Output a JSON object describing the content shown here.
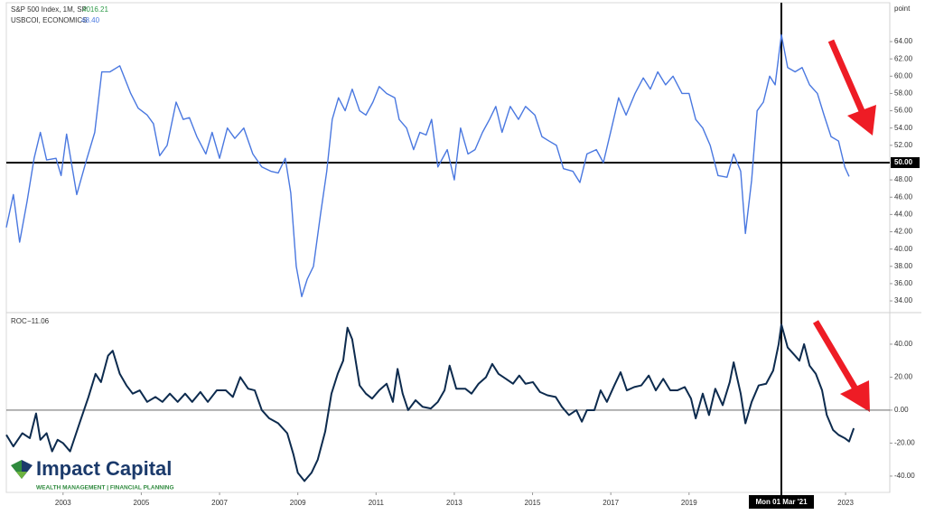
{
  "header": {
    "symbol": "S&P 500 Index, 1M, SP",
    "value": 4016.21
  },
  "logo": {
    "name": "Impact Capital",
    "tagline": "WEALTH MANAGEMENT | FINANCIAL PLANNING"
  },
  "chart_data": [
    {
      "type": "line",
      "axis_unit": "point",
      "x": [
        2001.55,
        2001.73,
        2001.89,
        2002.08,
        2002.26,
        2002.42,
        2002.58,
        2002.82,
        2002.95,
        2003.09,
        2003.35,
        2003.58,
        2003.81,
        2003.99,
        2004.2,
        2004.45,
        2004.73,
        2004.92,
        2005.15,
        2005.31,
        2005.47,
        2005.66,
        2005.89,
        2006.07,
        2006.23,
        2006.42,
        2006.65,
        2006.81,
        2007.0,
        2007.2,
        2007.39,
        2007.62,
        2007.85,
        2008.08,
        2008.31,
        2008.5,
        2008.68,
        2008.82,
        2008.96,
        2009.1,
        2009.24,
        2009.4,
        2009.58,
        2009.74,
        2009.88,
        2010.04,
        2010.21,
        2010.39,
        2010.58,
        2010.74,
        2010.92,
        2011.08,
        2011.27,
        2011.48,
        2011.59,
        2011.78,
        2011.96,
        2012.12,
        2012.28,
        2012.42,
        2012.58,
        2012.82,
        2013.0,
        2013.16,
        2013.35,
        2013.53,
        2013.72,
        2013.9,
        2014.06,
        2014.22,
        2014.43,
        2014.64,
        2014.82,
        2015.06,
        2015.24,
        2015.42,
        2015.61,
        2015.79,
        2016.03,
        2016.21,
        2016.39,
        2016.63,
        2016.81,
        2017.02,
        2017.2,
        2017.39,
        2017.62,
        2017.83,
        2018.01,
        2018.2,
        2018.4,
        2018.59,
        2018.82,
        2019.0,
        2019.17,
        2019.35,
        2019.54,
        2019.74,
        2019.97,
        2020.14,
        2020.32,
        2020.44,
        2020.6,
        2020.74,
        2020.9,
        2021.06,
        2021.2,
        2021.36,
        2021.52,
        2021.71,
        2021.89,
        2022.08,
        2022.28,
        2022.45,
        2022.63,
        2022.82,
        2022.98,
        2023.09
      ],
      "series": [
        {
          "name": "USBCOI, ECONOMICS",
          "color": "#4a78e0",
          "last_label": "48.40",
          "values": [
            42.5,
            46.3,
            40.8,
            45.5,
            50.5,
            53.5,
            50.3,
            50.5,
            48.5,
            53.3,
            46.3,
            50,
            53.5,
            60.5,
            60.5,
            61.2,
            58,
            56.3,
            55.5,
            54.5,
            50.8,
            52,
            57,
            55,
            55.2,
            53,
            51,
            53.5,
            50.5,
            54,
            52.8,
            54,
            51,
            49.5,
            49,
            48.8,
            50.5,
            46.5,
            38,
            34.5,
            36.5,
            38,
            44,
            49,
            55,
            57.5,
            56,
            58.5,
            56,
            55.5,
            57,
            58.8,
            58,
            57.5,
            55,
            54,
            51.5,
            53.5,
            53.2,
            55,
            49.5,
            51.5,
            48,
            54,
            51,
            51.5,
            53.5,
            55,
            56.5,
            53.5,
            56.5,
            55,
            56.5,
            55.5,
            53,
            52.5,
            52,
            49.3,
            49,
            47.7,
            51,
            51.5,
            50,
            54,
            57.5,
            55.5,
            58,
            59.8,
            58.5,
            60.5,
            59,
            60,
            58,
            58,
            55,
            54,
            52,
            48.5,
            48.3,
            51,
            49,
            41.8,
            48,
            56,
            57,
            60,
            59,
            64.8,
            61,
            60.5,
            61,
            59,
            58,
            55.5,
            53,
            52.5,
            49.5,
            48.4
          ]
        }
      ],
      "hline": {
        "value": 50,
        "label": "50.00"
      },
      "xlim": [
        2001.55,
        2024.13
      ],
      "ylim": [
        32.75,
        68.5
      ],
      "yticks": [
        {
          "value": 34,
          "label": "34.00"
        },
        {
          "value": 36,
          "label": "36.00"
        },
        {
          "value": 38,
          "label": "38.00"
        },
        {
          "value": 40,
          "label": "40.00"
        },
        {
          "value": 42,
          "label": "42.00"
        },
        {
          "value": 44,
          "label": "44.00"
        },
        {
          "value": 46,
          "label": "46.00"
        },
        {
          "value": 48,
          "label": "48.00"
        },
        {
          "value": 52,
          "label": "52.00"
        },
        {
          "value": 54,
          "label": "54.00"
        },
        {
          "value": 56,
          "label": "56.00"
        },
        {
          "value": 58,
          "label": "58.00"
        },
        {
          "value": 60,
          "label": "60.00"
        },
        {
          "value": 62,
          "label": "62.00"
        },
        {
          "value": 64,
          "label": "64.00"
        }
      ]
    },
    {
      "type": "line",
      "crosshair_label": "Mon 01 Mar '21",
      "x": [
        2001.55,
        2001.73,
        2001.96,
        2002.15,
        2002.31,
        2002.42,
        2002.58,
        2002.72,
        2002.86,
        2003.0,
        2003.18,
        2003.42,
        2003.65,
        2003.83,
        2003.97,
        2004.15,
        2004.27,
        2004.45,
        2004.62,
        2004.78,
        2004.96,
        2005.15,
        2005.36,
        2005.54,
        2005.73,
        2005.93,
        2006.12,
        2006.3,
        2006.51,
        2006.7,
        2006.93,
        2007.16,
        2007.34,
        2007.53,
        2007.73,
        2007.9,
        2008.08,
        2008.27,
        2008.5,
        2008.73,
        2008.89,
        2009.0,
        2009.17,
        2009.35,
        2009.51,
        2009.7,
        2009.86,
        2010.02,
        2010.16,
        2010.27,
        2010.39,
        2010.58,
        2010.74,
        2010.9,
        2011.08,
        2011.27,
        2011.43,
        2011.55,
        2011.68,
        2011.82,
        2012.01,
        2012.19,
        2012.4,
        2012.58,
        2012.75,
        2012.88,
        2013.05,
        2013.28,
        2013.44,
        2013.62,
        2013.81,
        2013.97,
        2014.13,
        2014.32,
        2014.5,
        2014.66,
        2014.82,
        2015.01,
        2015.19,
        2015.38,
        2015.59,
        2015.75,
        2015.93,
        2016.12,
        2016.26,
        2016.39,
        2016.58,
        2016.74,
        2016.9,
        2017.09,
        2017.25,
        2017.41,
        2017.6,
        2017.78,
        2017.97,
        2018.15,
        2018.34,
        2018.52,
        2018.7,
        2018.89,
        2019.05,
        2019.17,
        2019.35,
        2019.51,
        2019.67,
        2019.86,
        2020.04,
        2020.14,
        2020.32,
        2020.44,
        2020.6,
        2020.78,
        2020.97,
        2021.15,
        2021.29,
        2021.36,
        2021.52,
        2021.71,
        2021.82,
        2021.94,
        2022.08,
        2022.24,
        2022.4,
        2022.52,
        2022.68,
        2022.82,
        2022.98,
        2023.09,
        2023.21
      ],
      "series": [
        {
          "name": "ROC",
          "color": "#0d2b4e",
          "last_label": "−11.06",
          "values": [
            -15,
            -22,
            -14,
            -17,
            -2,
            -18,
            -14,
            -25,
            -18,
            -20,
            -25,
            -8,
            8,
            22,
            17,
            33,
            36,
            22,
            15,
            10,
            12,
            5,
            8,
            5,
            10,
            5,
            10,
            5,
            11,
            5,
            12,
            12,
            8,
            20,
            13,
            12,
            0,
            -5,
            -8,
            -14,
            -27,
            -38,
            -43,
            -38,
            -30,
            -13,
            10,
            22,
            30,
            50,
            43,
            15,
            10,
            7,
            12,
            16,
            5,
            25,
            10,
            0,
            6,
            2,
            1,
            5,
            12,
            27,
            13,
            13,
            10,
            16,
            20,
            28,
            22,
            19,
            16,
            21,
            16,
            17,
            11,
            9,
            8,
            2,
            -3,
            0,
            -7,
            0,
            0,
            12,
            5,
            15,
            23,
            12,
            14,
            15,
            21,
            12,
            19,
            12,
            12,
            14,
            7,
            -5,
            10,
            -3,
            13,
            3,
            17,
            29,
            10,
            -8,
            5,
            15,
            16,
            24,
            40,
            52,
            38,
            33,
            30,
            40,
            27,
            22,
            12,
            -3,
            -12,
            -15,
            -17,
            -19,
            -11
          ]
        }
      ],
      "zero_line": true,
      "xlim": [
        2001.55,
        2024.13
      ],
      "ylim": [
        -49.9,
        58.6
      ],
      "xticks": [
        2003,
        2005,
        2007,
        2009,
        2011,
        2013,
        2015,
        2017,
        2019,
        2023
      ],
      "yticks": [
        {
          "value": -40,
          "label": "-40.00"
        },
        {
          "value": -20,
          "label": "-20.00"
        },
        {
          "value": 0,
          "label": "0.00"
        },
        {
          "value": 20,
          "label": "20.00"
        },
        {
          "value": 40,
          "label": "40.00"
        }
      ]
    }
  ]
}
